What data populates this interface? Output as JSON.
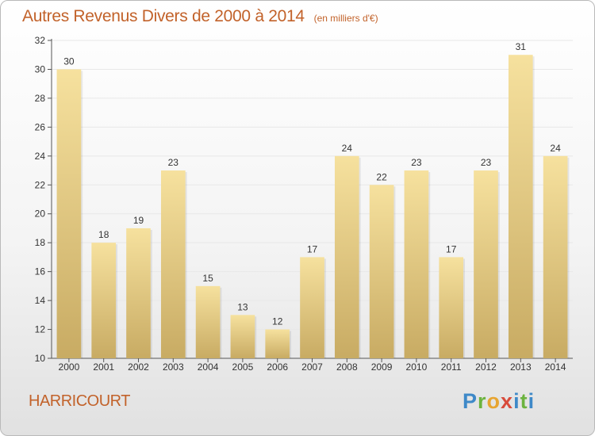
{
  "title": "Autres Revenus Divers de 2000 à 2014",
  "title_unit": "(en milliers d'€)",
  "location": "HARRICOURT",
  "brand": {
    "text": "Proxiti",
    "letters": [
      "P",
      "r",
      "o",
      "x",
      "i",
      "t",
      "i"
    ]
  },
  "colors": {
    "title": "#c2622a",
    "bar_top": "#f6e19e",
    "bar_bottom": "#c8ab63",
    "axis": "#555555",
    "grid": "#e8e8e8"
  },
  "chart_data": {
    "type": "bar",
    "title": "Autres Revenus Divers de 2000 à 2014",
    "xlabel": "",
    "ylabel": "",
    "categories": [
      "2000",
      "2001",
      "2002",
      "2003",
      "2004",
      "2005",
      "2006",
      "2007",
      "2008",
      "2009",
      "2010",
      "2011",
      "2012",
      "2013",
      "2014"
    ],
    "values": [
      30,
      18,
      19,
      23,
      15,
      13,
      12,
      17,
      24,
      22,
      23,
      17,
      23,
      31,
      24
    ],
    "ylim": [
      10,
      32
    ],
    "yticks": [
      10,
      12,
      14,
      16,
      18,
      20,
      22,
      24,
      26,
      28,
      30,
      32
    ],
    "grid": true,
    "legend": "none"
  }
}
